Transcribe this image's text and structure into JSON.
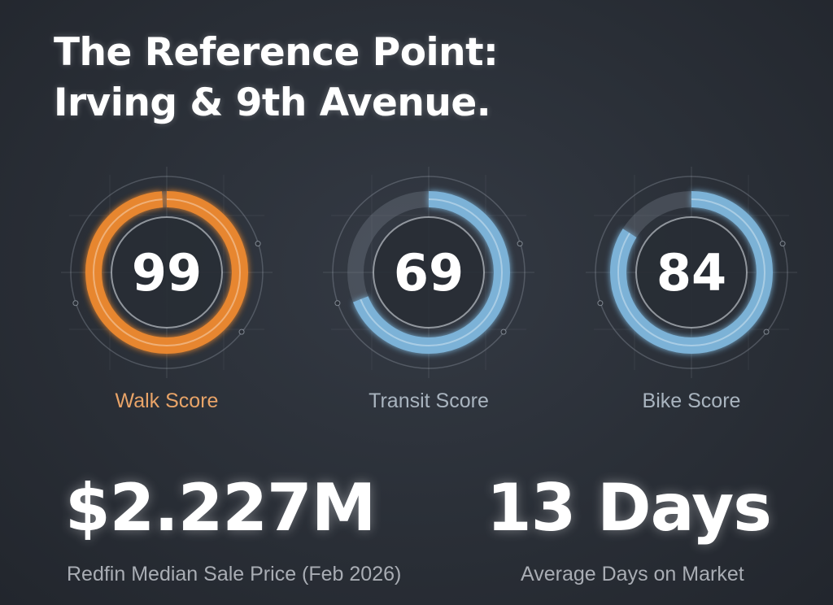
{
  "title": {
    "line1": "The Reference Point:",
    "line2": "Irving & 9th Avenue."
  },
  "scores": [
    {
      "value": "99",
      "label": "Walk Score",
      "fraction": 0.99,
      "color": "#f08a2e",
      "label_color": "#e9a468"
    },
    {
      "value": "69",
      "label": "Transit Score",
      "fraction": 0.69,
      "color": "#7fb8de",
      "label_color": "#a9b4bf"
    },
    {
      "value": "84",
      "label": "Bike Score",
      "fraction": 0.84,
      "color": "#7fb8de",
      "label_color": "#a9b4bf"
    }
  ],
  "stats": {
    "price": {
      "value": "$2.227M",
      "caption": "Redfin Median Sale Price (Feb 2026)"
    },
    "days": {
      "value": "13 Days",
      "caption": "Average Days on Market"
    }
  }
}
